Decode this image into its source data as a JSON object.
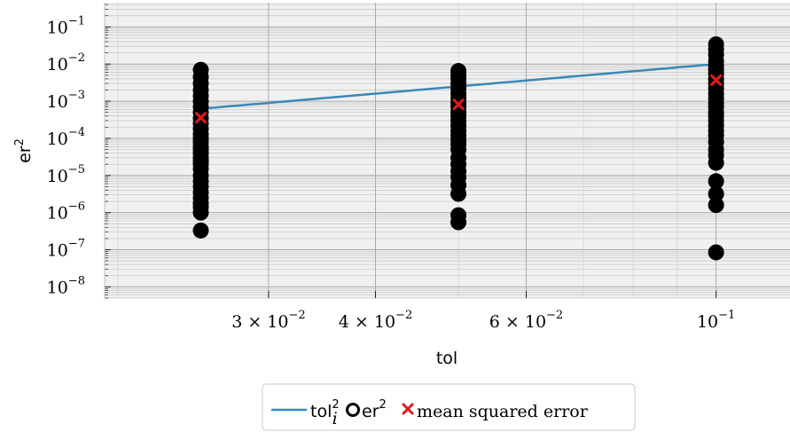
{
  "chart_data": {
    "type": "scatter",
    "xlabel": "tol",
    "ylabel": "er",
    "ylabel_sup": "2",
    "x_scale": "log",
    "y_scale": "log",
    "xlim": [
      0.0193,
      0.122
    ],
    "ylim": [
      5e-09,
      0.45
    ],
    "grid": true,
    "y_ticks": [
      {
        "value": 0.1,
        "base": "10",
        "exp": "−1"
      },
      {
        "value": 0.01,
        "base": "10",
        "exp": "−2"
      },
      {
        "value": 0.001,
        "base": "10",
        "exp": "−3"
      },
      {
        "value": 0.0001,
        "base": "10",
        "exp": "−4"
      },
      {
        "value": 1e-05,
        "base": "10",
        "exp": "−5"
      },
      {
        "value": 1e-06,
        "base": "10",
        "exp": "−6"
      },
      {
        "value": 1e-07,
        "base": "10",
        "exp": "−7"
      },
      {
        "value": 1e-08,
        "base": "10",
        "exp": "−8"
      }
    ],
    "x_ticks": [
      {
        "value": 0.03,
        "base": "3 × 10",
        "exp": "−2"
      },
      {
        "value": 0.04,
        "base": "4 × 10",
        "exp": "−2"
      },
      {
        "value": 0.06,
        "base": "6 × 10",
        "exp": "−2"
      },
      {
        "value": 0.1,
        "base": "10",
        "exp": "−1"
      }
    ],
    "series": [
      {
        "type": "line",
        "color": "#3a87b8",
        "x": [
          0.025,
          0.05,
          0.1
        ],
        "y": [
          0.000625,
          0.0025,
          0.01
        ]
      },
      {
        "type": "scatter",
        "color": "#000000",
        "groups": [
          {
            "x": 0.025,
            "y": [
              0.007,
              0.0045,
              0.003,
              0.002,
              0.0014,
              0.001,
              0.0007,
              0.0005,
              0.00035,
              0.00025,
              0.00018,
              0.00013,
              0.0001,
              8e-05,
              6e-05,
              5e-05,
              4e-05,
              3e-05,
              2.5e-05,
              2e-05,
              1.5e-05,
              1e-05,
              7e-06,
              5e-06,
              3.5e-06,
              2.5e-06,
              1.8e-06,
              1.4e-06,
              1e-06,
              3.3e-07
            ]
          },
          {
            "x": 0.05,
            "y": [
              0.0065,
              0.005,
              0.004,
              0.003,
              0.0022,
              0.0016,
              0.0012,
              0.0009,
              0.0007,
              0.0005,
              0.0004,
              0.0003,
              0.00022,
              0.00016,
              0.00012,
              9e-05,
              7e-05,
              5e-05,
              3e-05,
              2e-05,
              1.3e-05,
              9e-06,
              5.5e-06,
              3.2e-06,
              8.5e-07,
              5.5e-07
            ]
          },
          {
            "x": 0.1,
            "y": [
              0.034,
              0.025,
              0.018,
              0.012,
              0.009,
              0.007,
              0.0055,
              0.004,
              0.003,
              0.0022,
              0.0016,
              0.0012,
              0.0009,
              0.0007,
              0.0005,
              0.0004,
              0.0003,
              0.00022,
              0.00016,
              0.00012,
              8e-05,
              5e-05,
              3.5e-05,
              2.2e-05,
              7e-06,
              3.2e-06,
              1.6e-06,
              8.5e-08
            ]
          }
        ]
      },
      {
        "type": "scatter",
        "marker": "x",
        "color": "#e8171c",
        "x": [
          0.025,
          0.05,
          0.1
        ],
        "y": [
          0.00036,
          0.00082,
          0.0037
        ]
      }
    ],
    "legend": {
      "placement": "bottom-center",
      "entries": [
        {
          "marker": "line",
          "color": "#3a87b8",
          "text": "tol",
          "sup": "2",
          "sub": "i"
        },
        {
          "marker": "circle",
          "color": "#000000",
          "text": "er",
          "sup": "2"
        },
        {
          "marker": "x",
          "color": "#e8171c",
          "text": "mean squared error"
        }
      ]
    }
  }
}
